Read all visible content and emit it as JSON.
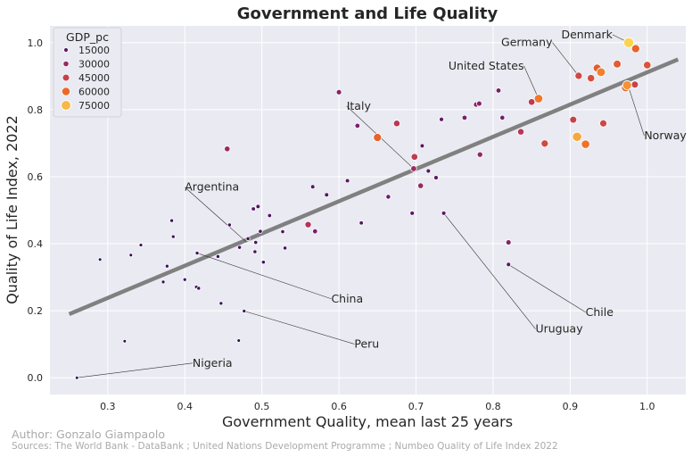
{
  "chart_data": {
    "type": "scatter",
    "title": "Government and Life Quality",
    "xlabel": "Government Quality, mean last 25 years",
    "ylabel": "Quality of Life Index, 2022",
    "xlim": [
      0.225,
      1.05
    ],
    "ylim": [
      -0.05,
      1.05
    ],
    "xticks": [
      0.3,
      0.4,
      0.5,
      0.6,
      0.7,
      0.8,
      0.9,
      1.0
    ],
    "yticks": [
      0.0,
      0.2,
      0.4,
      0.6,
      0.8,
      1.0
    ],
    "grid": true,
    "legend": {
      "title": "GDP_pc",
      "placement": "top-left",
      "entries": [
        {
          "label": "15000",
          "value": 15000
        },
        {
          "label": "30000",
          "value": 30000
        },
        {
          "label": "45000",
          "value": 45000
        },
        {
          "label": "60000",
          "value": 60000
        },
        {
          "label": "75000",
          "value": 75000
        }
      ]
    },
    "trendline": {
      "x": [
        0.25,
        1.04
      ],
      "y": [
        0.19,
        0.95
      ],
      "color": "#808080"
    },
    "points": [
      {
        "x": 0.26,
        "y": 0.0,
        "gdp": 2000
      },
      {
        "x": 0.29,
        "y": 0.353,
        "gdp": 3000
      },
      {
        "x": 0.322,
        "y": 0.109,
        "gdp": 3000
      },
      {
        "x": 0.33,
        "y": 0.366,
        "gdp": 4000
      },
      {
        "x": 0.343,
        "y": 0.396,
        "gdp": 5000
      },
      {
        "x": 0.372,
        "y": 0.286,
        "gdp": 5000
      },
      {
        "x": 0.377,
        "y": 0.333,
        "gdp": 6000
      },
      {
        "x": 0.383,
        "y": 0.469,
        "gdp": 7000
      },
      {
        "x": 0.385,
        "y": 0.421,
        "gdp": 6000
      },
      {
        "x": 0.4,
        "y": 0.293,
        "gdp": 6000
      },
      {
        "x": 0.415,
        "y": 0.271,
        "gdp": 6000
      },
      {
        "x": 0.418,
        "y": 0.267,
        "gdp": 7000
      },
      {
        "x": 0.416,
        "y": 0.372,
        "gdp": 7000
      },
      {
        "x": 0.443,
        "y": 0.362,
        "gdp": 8000
      },
      {
        "x": 0.447,
        "y": 0.222,
        "gdp": 6000
      },
      {
        "x": 0.455,
        "y": 0.683,
        "gdp": 30000
      },
      {
        "x": 0.458,
        "y": 0.456,
        "gdp": 8000
      },
      {
        "x": 0.47,
        "y": 0.111,
        "gdp": 4000
      },
      {
        "x": 0.471,
        "y": 0.389,
        "gdp": 9000
      },
      {
        "x": 0.477,
        "y": 0.199,
        "gdp": 5000
      },
      {
        "x": 0.482,
        "y": 0.415,
        "gdp": 9000
      },
      {
        "x": 0.489,
        "y": 0.504,
        "gdp": 12000
      },
      {
        "x": 0.492,
        "y": 0.404,
        "gdp": 10000
      },
      {
        "x": 0.491,
        "y": 0.376,
        "gdp": 9000
      },
      {
        "x": 0.495,
        "y": 0.511,
        "gdp": 13000
      },
      {
        "x": 0.498,
        "y": 0.437,
        "gdp": 10000
      },
      {
        "x": 0.502,
        "y": 0.345,
        "gdp": 8000
      },
      {
        "x": 0.51,
        "y": 0.484,
        "gdp": 11000
      },
      {
        "x": 0.527,
        "y": 0.436,
        "gdp": 10000
      },
      {
        "x": 0.53,
        "y": 0.387,
        "gdp": 9000
      },
      {
        "x": 0.56,
        "y": 0.457,
        "gdp": 38000
      },
      {
        "x": 0.566,
        "y": 0.57,
        "gdp": 13000
      },
      {
        "x": 0.569,
        "y": 0.437,
        "gdp": 22000
      },
      {
        "x": 0.584,
        "y": 0.546,
        "gdp": 14000
      },
      {
        "x": 0.6,
        "y": 0.852,
        "gdp": 25000
      },
      {
        "x": 0.611,
        "y": 0.588,
        "gdp": 13000
      },
      {
        "x": 0.624,
        "y": 0.752,
        "gdp": 22000
      },
      {
        "x": 0.629,
        "y": 0.462,
        "gdp": 12000
      },
      {
        "x": 0.65,
        "y": 0.717,
        "gdp": 58000
      },
      {
        "x": 0.664,
        "y": 0.54,
        "gdp": 18000
      },
      {
        "x": 0.675,
        "y": 0.759,
        "gdp": 40000
      },
      {
        "x": 0.695,
        "y": 0.491,
        "gdp": 14000
      },
      {
        "x": 0.697,
        "y": 0.624,
        "gdp": 32000
      },
      {
        "x": 0.698,
        "y": 0.659,
        "gdp": 42000
      },
      {
        "x": 0.706,
        "y": 0.573,
        "gdp": 30000
      },
      {
        "x": 0.708,
        "y": 0.692,
        "gdp": 13000
      },
      {
        "x": 0.716,
        "y": 0.617,
        "gdp": 14000
      },
      {
        "x": 0.726,
        "y": 0.597,
        "gdp": 14000
      },
      {
        "x": 0.733,
        "y": 0.771,
        "gdp": 16000
      },
      {
        "x": 0.736,
        "y": 0.491,
        "gdp": 14000
      },
      {
        "x": 0.763,
        "y": 0.776,
        "gdp": 22000
      },
      {
        "x": 0.778,
        "y": 0.815,
        "gdp": 25000
      },
      {
        "x": 0.782,
        "y": 0.818,
        "gdp": 25000
      },
      {
        "x": 0.783,
        "y": 0.666,
        "gdp": 28000
      },
      {
        "x": 0.807,
        "y": 0.857,
        "gdp": 22000
      },
      {
        "x": 0.812,
        "y": 0.776,
        "gdp": 20000
      },
      {
        "x": 0.82,
        "y": 0.338,
        "gdp": 14000
      },
      {
        "x": 0.82,
        "y": 0.404,
        "gdp": 25000
      },
      {
        "x": 0.836,
        "y": 0.734,
        "gdp": 40000
      },
      {
        "x": 0.85,
        "y": 0.823,
        "gdp": 42000
      },
      {
        "x": 0.859,
        "y": 0.833,
        "gdp": 63000
      },
      {
        "x": 0.867,
        "y": 0.699,
        "gdp": 48000
      },
      {
        "x": 0.904,
        "y": 0.77,
        "gdp": 45000
      },
      {
        "x": 0.909,
        "y": 0.719,
        "gdp": 72000
      },
      {
        "x": 0.911,
        "y": 0.901,
        "gdp": 48000
      },
      {
        "x": 0.92,
        "y": 0.697,
        "gdp": 62000
      },
      {
        "x": 0.927,
        "y": 0.894,
        "gdp": 50000
      },
      {
        "x": 0.935,
        "y": 0.924,
        "gdp": 55000
      },
      {
        "x": 0.94,
        "y": 0.912,
        "gdp": 65000
      },
      {
        "x": 0.943,
        "y": 0.759,
        "gdp": 47000
      },
      {
        "x": 0.961,
        "y": 0.936,
        "gdp": 55000
      },
      {
        "x": 0.972,
        "y": 0.866,
        "gdp": 60000
      },
      {
        "x": 0.974,
        "y": 0.873,
        "gdp": 68000
      },
      {
        "x": 0.976,
        "y": 1.0,
        "gdp": 80000
      },
      {
        "x": 0.984,
        "y": 0.875,
        "gdp": 45000
      },
      {
        "x": 0.985,
        "y": 0.982,
        "gdp": 58000
      },
      {
        "x": 1.0,
        "y": 0.933,
        "gdp": 52000
      }
    ],
    "annotations": [
      {
        "label": "Nigeria",
        "x": 0.26,
        "y": 0.0,
        "tx": 0.41,
        "ty": 0.033,
        "anchor": "start"
      },
      {
        "label": "Argentina",
        "x": 0.48,
        "y": 0.405,
        "tx": 0.4,
        "ty": 0.558,
        "anchor": "start"
      },
      {
        "label": "China",
        "x": 0.416,
        "y": 0.372,
        "tx": 0.59,
        "ty": 0.225,
        "anchor": "start"
      },
      {
        "label": "Peru",
        "x": 0.477,
        "y": 0.199,
        "tx": 0.62,
        "ty": 0.09,
        "anchor": "start"
      },
      {
        "label": "Italy",
        "x": 0.697,
        "y": 0.624,
        "tx": 0.61,
        "ty": 0.8,
        "anchor": "start"
      },
      {
        "label": "Uruguay",
        "x": 0.736,
        "y": 0.491,
        "tx": 0.855,
        "ty": 0.135,
        "anchor": "start"
      },
      {
        "label": "Chile",
        "x": 0.82,
        "y": 0.338,
        "tx": 0.92,
        "ty": 0.185,
        "anchor": "start"
      },
      {
        "label": "United States",
        "x": 0.859,
        "y": 0.833,
        "tx": 0.84,
        "ty": 0.92,
        "anchor": "end"
      },
      {
        "label": "Germany",
        "x": 0.911,
        "y": 0.901,
        "tx": 0.877,
        "ty": 0.99,
        "anchor": "end"
      },
      {
        "label": "Denmark",
        "x": 0.976,
        "y": 1.0,
        "tx": 0.955,
        "ty": 1.013,
        "anchor": "end"
      },
      {
        "label": "Norway",
        "x": 0.976,
        "y": 0.866,
        "tx": 0.996,
        "ty": 0.712,
        "anchor": "start"
      }
    ]
  },
  "footer": {
    "author": "Author: Gonzalo Giampaolo",
    "sources": "Sources: The World Bank - DataBank ; United Nations Development Programme ; Numbeo Quality of Life Index 2022"
  }
}
